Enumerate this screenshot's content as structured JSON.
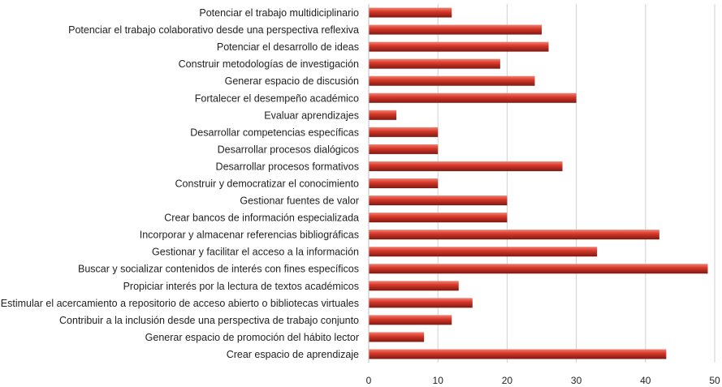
{
  "chart_data": {
    "type": "bar",
    "orientation": "horizontal",
    "categories": [
      "Potenciar el trabajo multidiciplinario",
      "Potenciar el trabajo colaborativo desde una perspectiva reflexiva",
      "Potenciar el desarrollo de ideas",
      "Construir metodologías de investigación",
      "Generar espacio de discusión",
      "Fortalecer el desempeño académico",
      "Evaluar aprendizajes",
      "Desarrollar competencias específicas",
      "Desarrollar procesos dialógicos",
      "Desarrollar procesos formativos",
      "Construir y democratizar el conocimiento",
      "Gestionar fuentes de valor",
      "Crear bancos de información especializada",
      "Incorporar y almacenar referencias bibliográficas",
      "Gestionar y facilitar el acceso a la información",
      "Buscar y socializar contenidos de interés con fines específicos",
      "Propiciar interés por la lectura de textos académicos",
      "Estimular el acercamiento a repositorio de acceso abierto o bibliotecas virtuales",
      "Contribuir a la inclusión desde una perspectiva de trabajo conjunto",
      "Generar espacio de promoción del hábito lector",
      "Crear espacio de aprendizaje"
    ],
    "values": [
      12,
      25,
      26,
      19,
      24,
      30,
      4,
      10,
      10,
      28,
      10,
      20,
      20,
      42,
      33,
      49,
      13,
      15,
      12,
      8,
      43
    ],
    "xlim": [
      0,
      50
    ],
    "xticks": [
      "0",
      "10",
      "20",
      "30",
      "40",
      "50"
    ],
    "grid": "vertical",
    "legend": "none",
    "colors": {
      "bar_light": "#f08272",
      "bar_mid": "#d9382a",
      "bar_dark": "#7e1a12"
    }
  }
}
